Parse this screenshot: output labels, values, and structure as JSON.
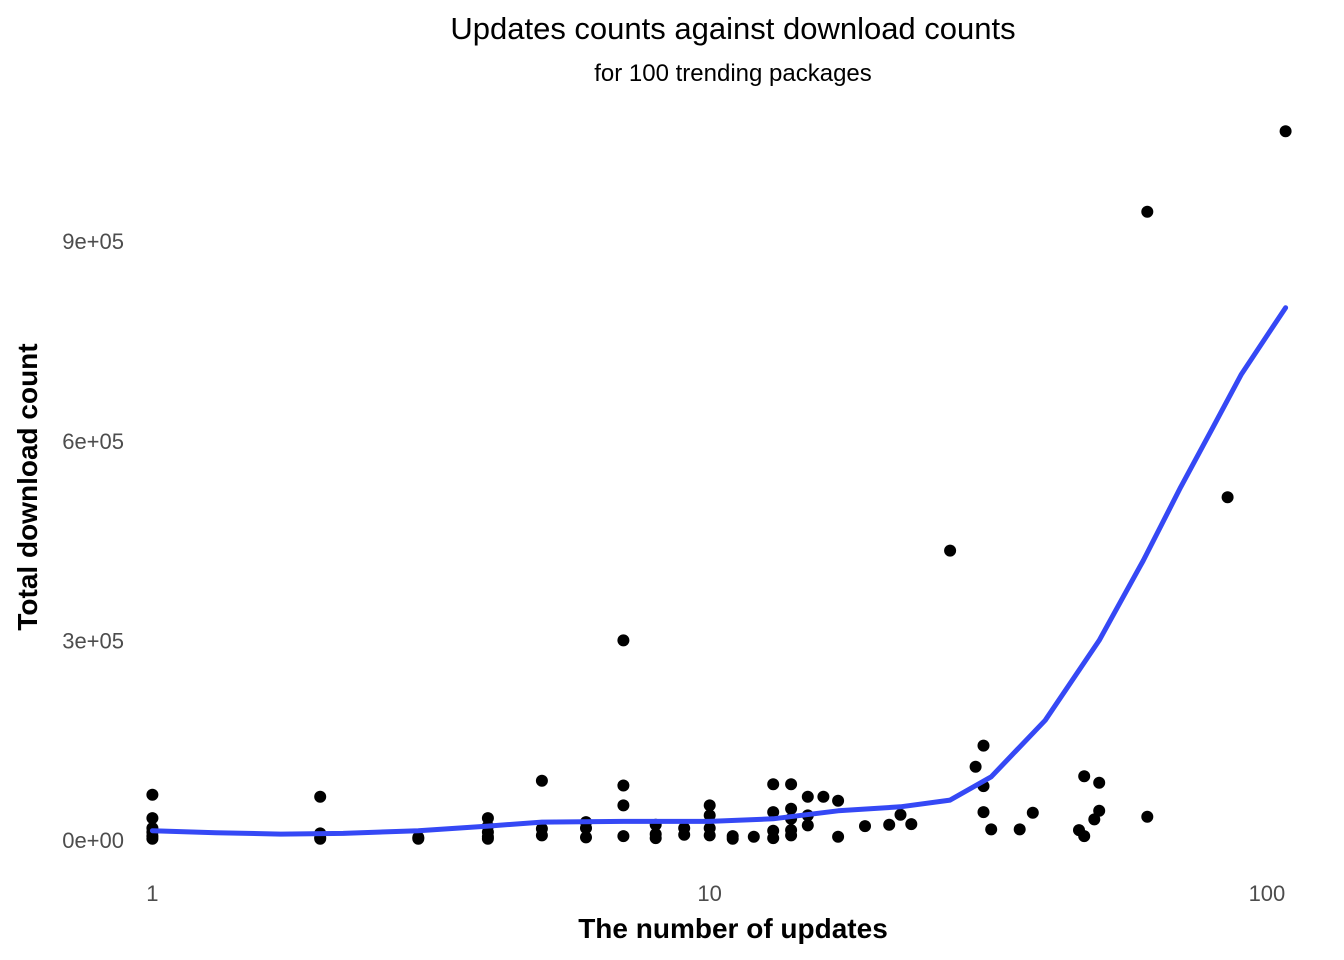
{
  "chart_data": {
    "type": "scatter",
    "title": "Updates counts against download counts",
    "subtitle": "for 100 trending packages",
    "xlabel": "The number of updates",
    "ylabel": "Total download count",
    "x_scale": "log10",
    "xlim": [
      0.95,
      110
    ],
    "ylim": [
      -45000,
      1100000
    ],
    "x_ticks": [
      {
        "value": 1,
        "label": "1"
      },
      {
        "value": 10,
        "label": "10"
      },
      {
        "value": 100,
        "label": "100"
      }
    ],
    "y_ticks": [
      {
        "value": 0,
        "label": "0e+00"
      },
      {
        "value": 300000,
        "label": "3e+05"
      },
      {
        "value": 600000,
        "label": "6e+05"
      },
      {
        "value": 900000,
        "label": "9e+05"
      }
    ],
    "grid": false,
    "legend": "none",
    "point_color": "#000000",
    "smooth_color": "#3548f5",
    "series": [
      {
        "type": "points",
        "points": [
          {
            "x": 1,
            "y": 68000
          },
          {
            "x": 1,
            "y": 33000
          },
          {
            "x": 1,
            "y": 18000
          },
          {
            "x": 1,
            "y": 12000
          },
          {
            "x": 1,
            "y": 6000
          },
          {
            "x": 1,
            "y": 2000
          },
          {
            "x": 2,
            "y": 65000
          },
          {
            "x": 2,
            "y": 10000
          },
          {
            "x": 2,
            "y": 4000
          },
          {
            "x": 2,
            "y": 2000
          },
          {
            "x": 3,
            "y": 4000
          },
          {
            "x": 3,
            "y": 2000
          },
          {
            "x": 4,
            "y": 33000
          },
          {
            "x": 4,
            "y": 21000
          },
          {
            "x": 4,
            "y": 12000
          },
          {
            "x": 4,
            "y": 5000
          },
          {
            "x": 4,
            "y": 2000
          },
          {
            "x": 5,
            "y": 89000
          },
          {
            "x": 5,
            "y": 17000
          },
          {
            "x": 5,
            "y": 7000
          },
          {
            "x": 6,
            "y": 27000
          },
          {
            "x": 6,
            "y": 18000
          },
          {
            "x": 6,
            "y": 4000
          },
          {
            "x": 7,
            "y": 300000
          },
          {
            "x": 7,
            "y": 82000
          },
          {
            "x": 7,
            "y": 52000
          },
          {
            "x": 7,
            "y": 6000
          },
          {
            "x": 8,
            "y": 23000
          },
          {
            "x": 8,
            "y": 9000
          },
          {
            "x": 8,
            "y": 3000
          },
          {
            "x": 9,
            "y": 18000
          },
          {
            "x": 9,
            "y": 8000
          },
          {
            "x": 10,
            "y": 52000
          },
          {
            "x": 10,
            "y": 37000
          },
          {
            "x": 10,
            "y": 18000
          },
          {
            "x": 10,
            "y": 7000
          },
          {
            "x": 11,
            "y": 6000
          },
          {
            "x": 11,
            "y": 2000
          },
          {
            "x": 12,
            "y": 5000
          },
          {
            "x": 13,
            "y": 84000
          },
          {
            "x": 13,
            "y": 42000
          },
          {
            "x": 13,
            "y": 14000
          },
          {
            "x": 13,
            "y": 3000
          },
          {
            "x": 14,
            "y": 84000
          },
          {
            "x": 14,
            "y": 47000
          },
          {
            "x": 14,
            "y": 32000
          },
          {
            "x": 14,
            "y": 15000
          },
          {
            "x": 14,
            "y": 7000
          },
          {
            "x": 15,
            "y": 65000
          },
          {
            "x": 15,
            "y": 37000
          },
          {
            "x": 15,
            "y": 22000
          },
          {
            "x": 16,
            "y": 65000
          },
          {
            "x": 17,
            "y": 59000
          },
          {
            "x": 17,
            "y": 5000
          },
          {
            "x": 19,
            "y": 21000
          },
          {
            "x": 21,
            "y": 23000
          },
          {
            "x": 22,
            "y": 38000
          },
          {
            "x": 23,
            "y": 24000
          },
          {
            "x": 27,
            "y": 435000
          },
          {
            "x": 30,
            "y": 110000
          },
          {
            "x": 31,
            "y": 142000
          },
          {
            "x": 31,
            "y": 81000
          },
          {
            "x": 31,
            "y": 42000
          },
          {
            "x": 32,
            "y": 16000
          },
          {
            "x": 36,
            "y": 16000
          },
          {
            "x": 38,
            "y": 41000
          },
          {
            "x": 46,
            "y": 15000
          },
          {
            "x": 47,
            "y": 96000
          },
          {
            "x": 47,
            "y": 6000
          },
          {
            "x": 49,
            "y": 31000
          },
          {
            "x": 50,
            "y": 86000
          },
          {
            "x": 50,
            "y": 44000
          },
          {
            "x": 61,
            "y": 944000
          },
          {
            "x": 61,
            "y": 35000
          },
          {
            "x": 85,
            "y": 515000
          },
          {
            "x": 108,
            "y": 1065000
          }
        ]
      },
      {
        "type": "smooth",
        "points": [
          {
            "x": 1,
            "y": 14000
          },
          {
            "x": 1.3,
            "y": 11000
          },
          {
            "x": 1.7,
            "y": 9000
          },
          {
            "x": 2.2,
            "y": 10000
          },
          {
            "x": 3,
            "y": 14000
          },
          {
            "x": 4,
            "y": 21000
          },
          {
            "x": 5,
            "y": 27000
          },
          {
            "x": 7,
            "y": 28000
          },
          {
            "x": 10,
            "y": 28000
          },
          {
            "x": 13,
            "y": 32000
          },
          {
            "x": 17,
            "y": 44000
          },
          {
            "x": 22,
            "y": 50000
          },
          {
            "x": 27,
            "y": 60000
          },
          {
            "x": 32,
            "y": 95000
          },
          {
            "x": 40,
            "y": 180000
          },
          {
            "x": 50,
            "y": 300000
          },
          {
            "x": 60,
            "y": 420000
          },
          {
            "x": 70,
            "y": 530000
          },
          {
            "x": 80,
            "y": 620000
          },
          {
            "x": 90,
            "y": 700000
          },
          {
            "x": 108,
            "y": 800000
          }
        ]
      }
    ]
  }
}
